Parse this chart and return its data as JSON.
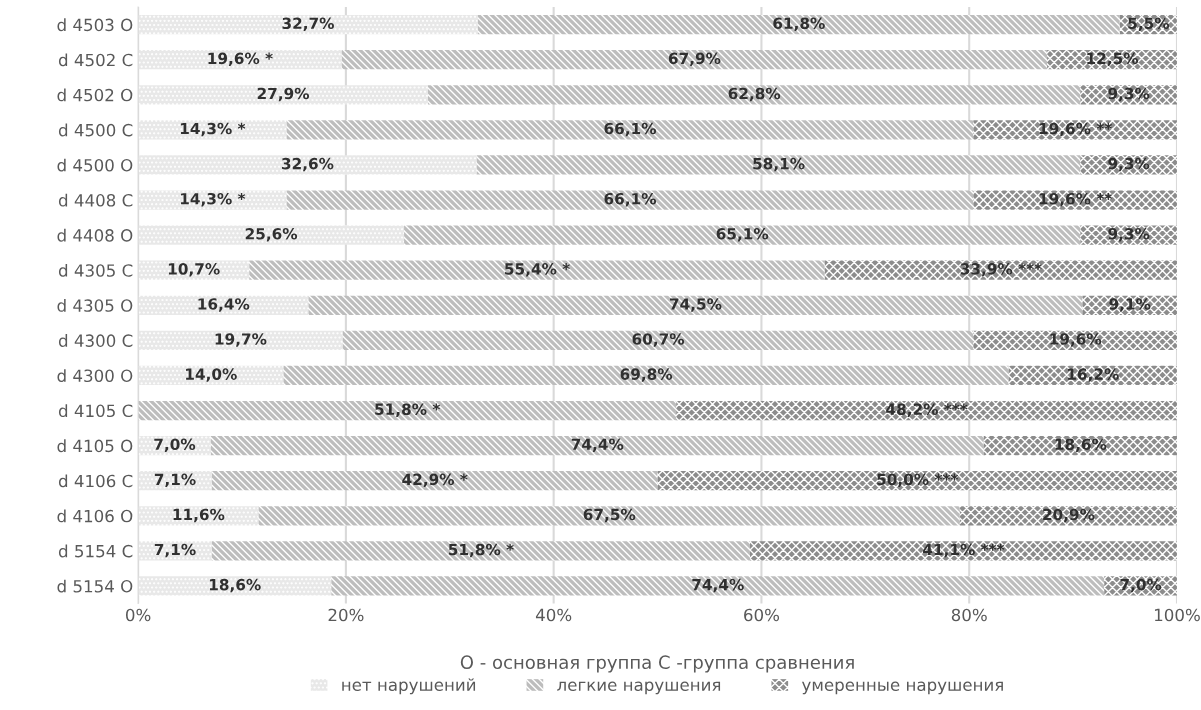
{
  "chart_data": {
    "type": "bar",
    "orientation": "horizontal",
    "stacked": true,
    "xlabel": "О - основная группа С -группа сравнения",
    "categories": [
      "d 4503 O",
      "d 4502 C",
      "d 4502 O",
      "d 4500 C",
      "d 4500 O",
      "d 4408 C",
      "d 4408 O",
      "d 4305 C",
      "d 4305 O",
      "d 4300 C",
      "d 4300 O",
      "d 4105 C",
      "d 4105 O",
      "d 4106 C",
      "d 4106 O",
      "d 5154 C",
      "d 5154 O"
    ],
    "series": [
      {
        "name": "нет нарушений",
        "color": "#e8e8e8",
        "values": [
          32.7,
          19.6,
          27.9,
          14.3,
          32.6,
          14.3,
          25.6,
          10.7,
          16.4,
          19.7,
          14.0,
          0,
          7.0,
          7.1,
          11.6,
          7.1,
          18.6
        ],
        "value_labels": [
          "32,7%",
          "19,6% *",
          "27,9%",
          "14,3% *",
          "32,6%",
          "14,3% *",
          "25,6%",
          "10,7%",
          "16,4%",
          "19,7%",
          "14,0%",
          null,
          "7,0%",
          "7,1%",
          "11,6%",
          "7,1%",
          "18,6%"
        ]
      },
      {
        "name": "легкие нарушения",
        "color": "#bdbdbd",
        "values": [
          61.8,
          67.9,
          62.8,
          66.1,
          58.1,
          66.1,
          65.1,
          55.4,
          74.5,
          60.7,
          69.8,
          51.8,
          74.4,
          42.9,
          67.5,
          51.8,
          74.4
        ],
        "value_labels": [
          "61,8%",
          "67,9%",
          "62,8%",
          "66,1%",
          "58,1%",
          "66,1%",
          "65,1%",
          "55,4% *",
          "74,5%",
          "60,7%",
          "69,8%",
          "51,8% *",
          "74,4%",
          "42,9% *",
          "67,5%",
          "51,8% *",
          "74,4%"
        ]
      },
      {
        "name": "умеренные нарушения",
        "color": "#8c8c8c",
        "values": [
          5.5,
          12.5,
          9.3,
          19.6,
          9.3,
          19.6,
          9.3,
          33.9,
          9.1,
          19.6,
          16.2,
          48.2,
          18.6,
          50.0,
          20.9,
          41.1,
          7.0
        ],
        "value_labels": [
          "5,5%",
          "12,5%",
          "9,3%",
          "19,6% **",
          "9,3%",
          "19,6% **",
          "9,3%",
          "33,9% ***",
          "9,1%",
          "19,6%",
          "16,2%",
          "48,2% ***",
          "18,6%",
          "50,0% ***",
          "20,9%",
          "41,1% ***",
          "7,0%"
        ]
      }
    ],
    "xlim": [
      0,
      100
    ],
    "xticks": [
      {
        "value": 0,
        "label": "0%"
      },
      {
        "value": 20,
        "label": "20%"
      },
      {
        "value": 40,
        "label": "40%"
      },
      {
        "value": 60,
        "label": "60%"
      },
      {
        "value": 80,
        "label": "80%"
      },
      {
        "value": 100,
        "label": "100%"
      }
    ],
    "grid": "x",
    "legend": "bottom"
  }
}
